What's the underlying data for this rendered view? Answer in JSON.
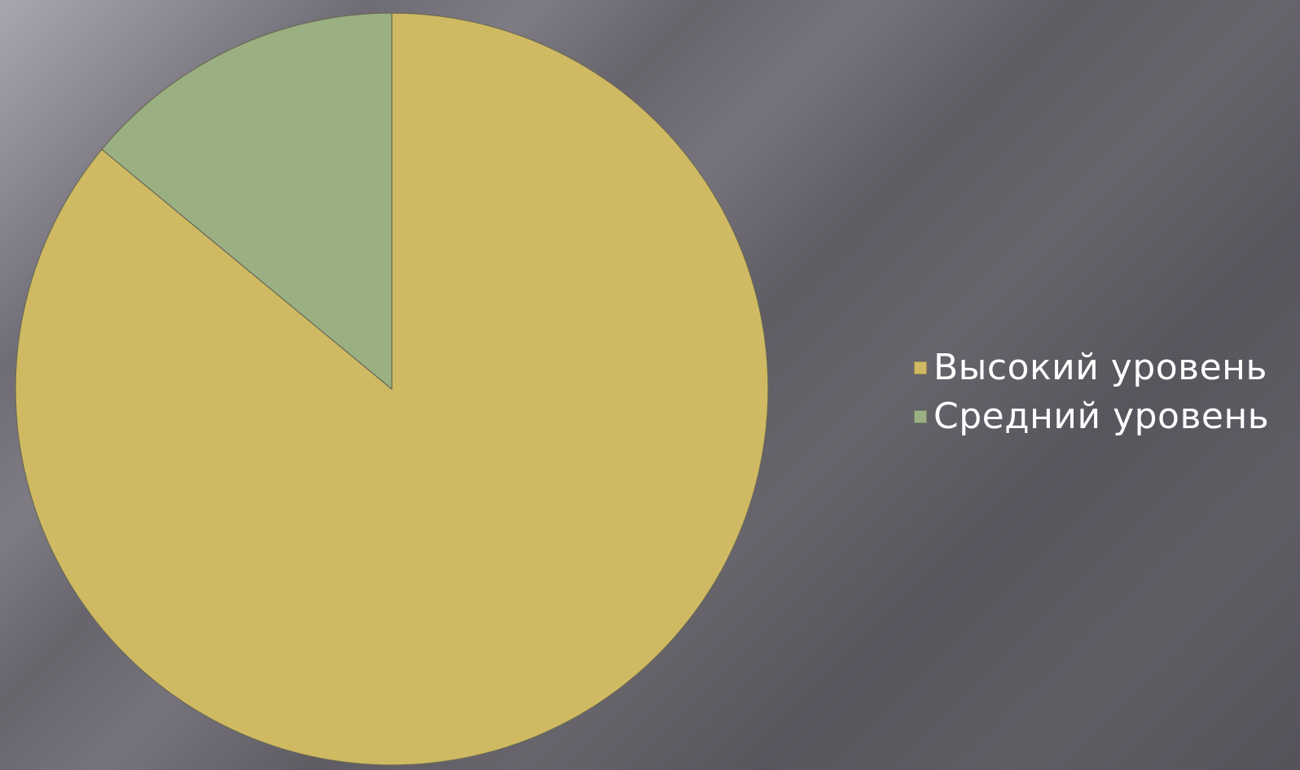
{
  "chart_data": {
    "type": "pie",
    "title": "",
    "series": [
      {
        "categories": [
          "Высокий уровень",
          "Средний уровень"
        ],
        "values": [
          86,
          14
        ]
      }
    ],
    "colors": [
      "#CFBA63",
      "#9BB082"
    ],
    "legend_position": "right",
    "start_angle": "12 o'clock",
    "direction": "clockwise"
  },
  "legend": {
    "items": [
      {
        "label": "Высокий уровень",
        "color": "#CFBA63"
      },
      {
        "label": "Средний уровень",
        "color": "#9BB082"
      }
    ]
  }
}
